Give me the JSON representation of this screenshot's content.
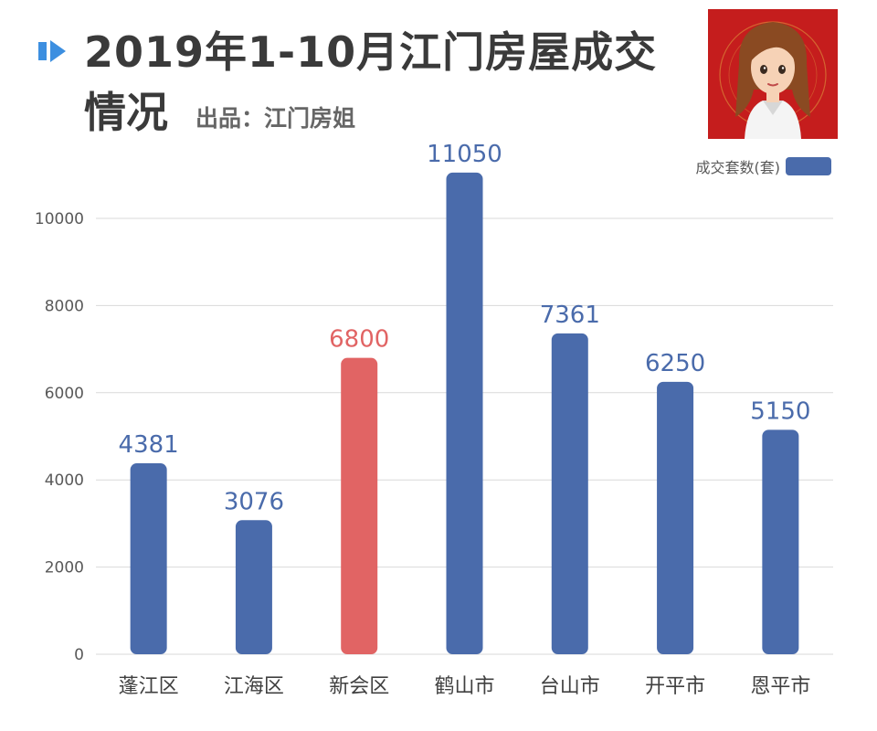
{
  "title": {
    "line1": "2019年1-10月江门房屋成交",
    "line2": "情况",
    "credit": "出品：江门房姐"
  },
  "colors": {
    "primary": "#4a6bab",
    "highlight": "#e16464",
    "title_icon": "#3d8fe0",
    "avatar_bg": "#c51d1d",
    "grid": "#d9d9d9"
  },
  "chart_data": {
    "type": "bar",
    "categories": [
      "蓬江区",
      "江海区",
      "新会区",
      "鹤山市",
      "台山市",
      "开平市",
      "恩平市"
    ],
    "series": [
      {
        "name": "成交套数(套)",
        "values": [
          4381,
          3076,
          6800,
          11050,
          7361,
          6250,
          5150
        ]
      }
    ],
    "highlight_index": 2,
    "y_ticks": [
      "0",
      "2000",
      "4000",
      "6000",
      "8000",
      "10000"
    ],
    "ylim": [
      0,
      11050
    ],
    "grid": true,
    "legend_position": "top-right",
    "xlabel": "",
    "ylabel": ""
  }
}
